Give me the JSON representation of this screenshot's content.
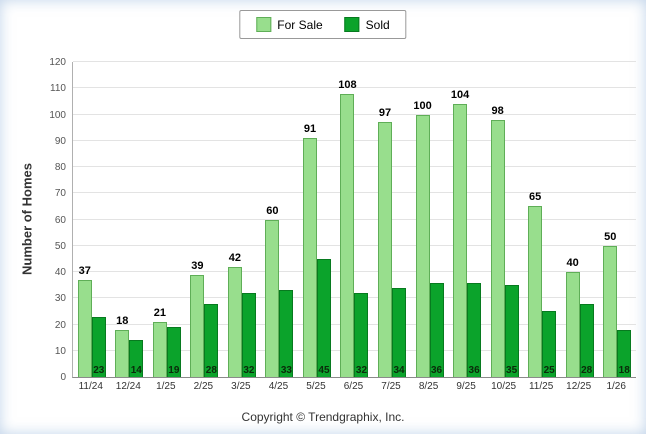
{
  "chart_data": {
    "type": "bar",
    "title": "",
    "categories": [
      "11/24",
      "12/24",
      "1/25",
      "2/25",
      "3/25",
      "4/25",
      "5/25",
      "6/25",
      "7/25",
      "8/25",
      "9/25",
      "10/25",
      "11/25",
      "12/25",
      "1/26"
    ],
    "series": [
      {
        "name": "For Sale",
        "color": "#98DE8D",
        "border": "#5fae57",
        "values": [
          37,
          18,
          21,
          39,
          42,
          60,
          91,
          108,
          97,
          100,
          104,
          98,
          65,
          40,
          50
        ]
      },
      {
        "name": "Sold",
        "color": "#0BA32B",
        "border": "#077a1f",
        "values": [
          23,
          14,
          19,
          28,
          32,
          33,
          45,
          32,
          34,
          36,
          36,
          35,
          25,
          28,
          18
        ]
      }
    ],
    "xlabel": "",
    "ylabel": "Number of Homes",
    "ylim": [
      0,
      120
    ],
    "ytick_step": 10,
    "grid": true,
    "legend_position": "top-center"
  },
  "footer": {
    "copyright": "Copyright © Trendgraphix, Inc."
  }
}
